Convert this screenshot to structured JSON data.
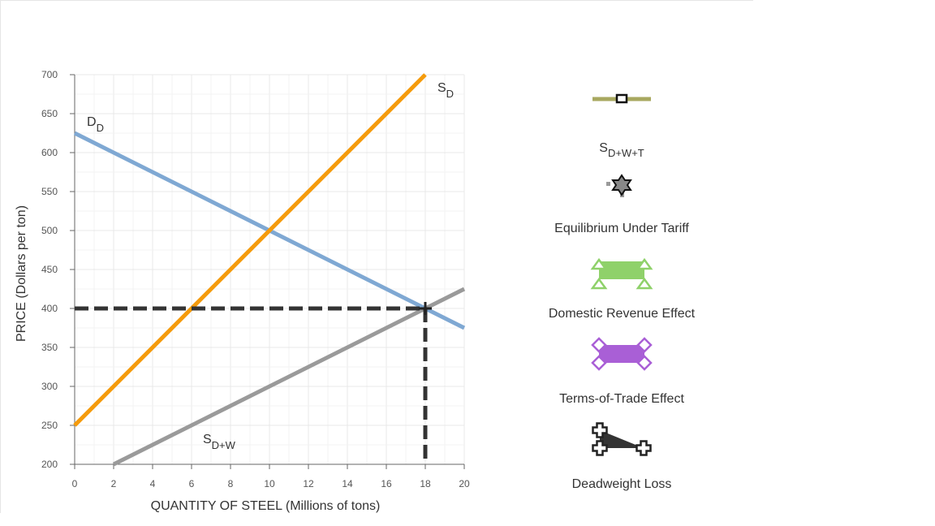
{
  "chart_data": {
    "type": "line",
    "xlabel": "QUANTITY OF STEEL (Millions of tons)",
    "ylabel": "PRICE (Dollars per ton)",
    "xlim": [
      0,
      20
    ],
    "ylim": [
      200,
      700
    ],
    "xticks": [
      0,
      2,
      4,
      6,
      8,
      10,
      12,
      14,
      16,
      18,
      20
    ],
    "yticks": [
      200,
      250,
      300,
      350,
      400,
      450,
      500,
      550,
      600,
      650,
      700
    ],
    "grid": true,
    "series": [
      {
        "label_main": "D",
        "label_sub": "D",
        "color": "#7fa8d3",
        "x": [
          0,
          20
        ],
        "y": [
          625,
          375
        ]
      },
      {
        "label_main": "S",
        "label_sub": "D",
        "color": "#f59b0c",
        "x": [
          0,
          18
        ],
        "y": [
          250,
          700
        ]
      },
      {
        "label_main": "S",
        "label_sub": "D+W",
        "color": "#9a9a9a",
        "x": [
          2,
          20
        ],
        "y": [
          200,
          425
        ]
      }
    ],
    "reference_lines": {
      "color": "#333333",
      "price": 400,
      "quantity": 18
    },
    "point": {
      "x": 18,
      "y": 400
    }
  },
  "legend": [
    {
      "icon": "olive-line-square-marker-icon",
      "label_main": "S",
      "label_sub": "D+W+T",
      "color": "#a8a85f"
    },
    {
      "icon": "star-marker-icon",
      "label": "Equilibrium Under Tariff",
      "color": "#333333"
    },
    {
      "icon": "green-triangle-area-icon",
      "label": "Domestic Revenue Effect",
      "color": "#8fd16a"
    },
    {
      "icon": "purple-diamond-area-icon",
      "label": "Terms-of-Trade Effect",
      "color": "#a95fd6"
    },
    {
      "icon": "black-cross-triangle-icon",
      "label": "Deadweight Loss",
      "color": "#333333"
    }
  ]
}
